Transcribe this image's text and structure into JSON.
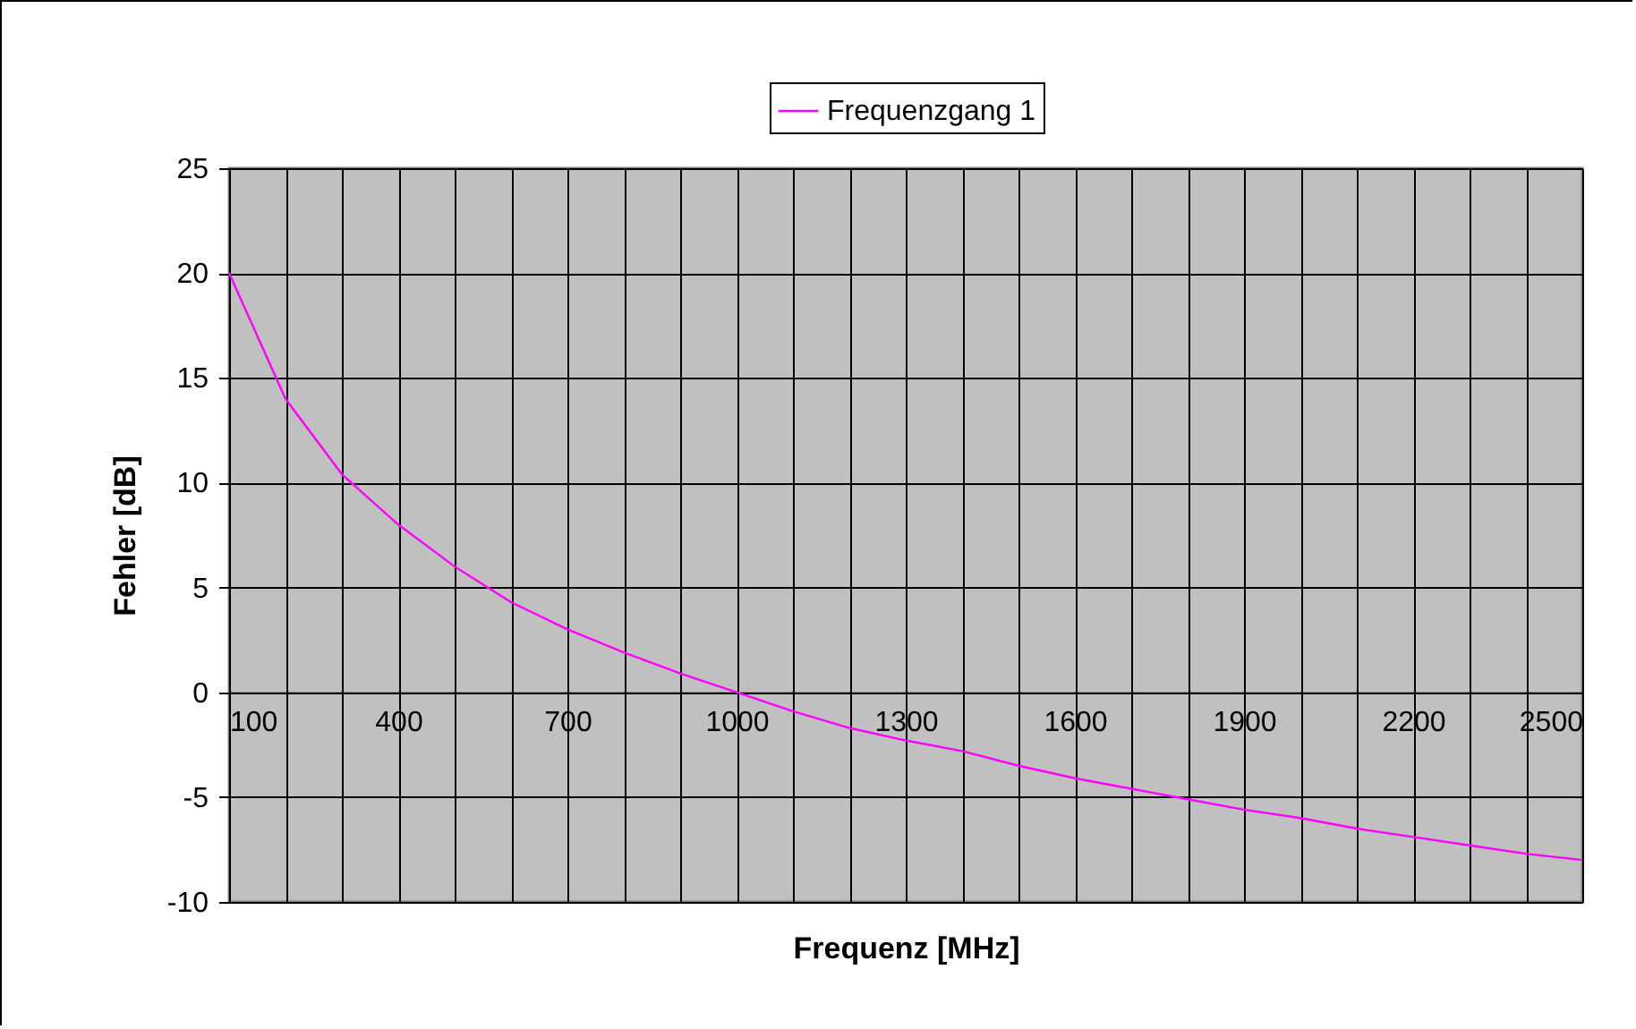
{
  "chart_data": {
    "type": "line",
    "xlabel": "Frequenz [MHz]",
    "ylabel": "Fehler [dB]",
    "x": [
      100,
      200,
      300,
      400,
      500,
      600,
      700,
      800,
      900,
      1000,
      1100,
      1200,
      1300,
      1400,
      1500,
      1600,
      1700,
      1800,
      1900,
      2000,
      2100,
      2200,
      2300,
      2400,
      2500
    ],
    "series": [
      {
        "name": "Frequenzgang 1",
        "color": "#ff00ff",
        "values": [
          20,
          14,
          10.4,
          8,
          6,
          4.3,
          3,
          1.9,
          0.9,
          0,
          -0.9,
          -1.7,
          -2.3,
          -2.8,
          -3.5,
          -4.1,
          -4.6,
          -5.1,
          -5.6,
          -6,
          -6.5,
          -6.9,
          -7.3,
          -7.7,
          -8
        ]
      }
    ],
    "xlim": [
      100,
      2500
    ],
    "xticks": [
      100,
      {
        "value": 200,
        "label": null
      },
      {
        "value": 300,
        "label": null
      },
      400,
      {
        "value": 500,
        "label": null
      },
      {
        "value": 600,
        "label": null
      },
      700,
      {
        "value": 800,
        "label": null
      },
      {
        "value": 900,
        "label": null
      },
      1000,
      {
        "value": 1100,
        "label": null
      },
      {
        "value": 1200,
        "label": null
      },
      1300,
      {
        "value": 1400,
        "label": null
      },
      {
        "value": 1500,
        "label": null
      },
      1600,
      {
        "value": 1700,
        "label": null
      },
      {
        "value": 1800,
        "label": null
      },
      1900,
      {
        "value": 2000,
        "label": null
      },
      {
        "value": 2100,
        "label": null
      },
      2200,
      {
        "value": 2300,
        "label": null
      },
      {
        "value": 2400,
        "label": null
      },
      2500
    ],
    "ylim": [
      -10,
      25
    ],
    "yticks": [
      -10,
      -5,
      0,
      5,
      10,
      15,
      20,
      25
    ],
    "grid": true,
    "legend": "top",
    "marker": "none",
    "line_style": "solid"
  }
}
